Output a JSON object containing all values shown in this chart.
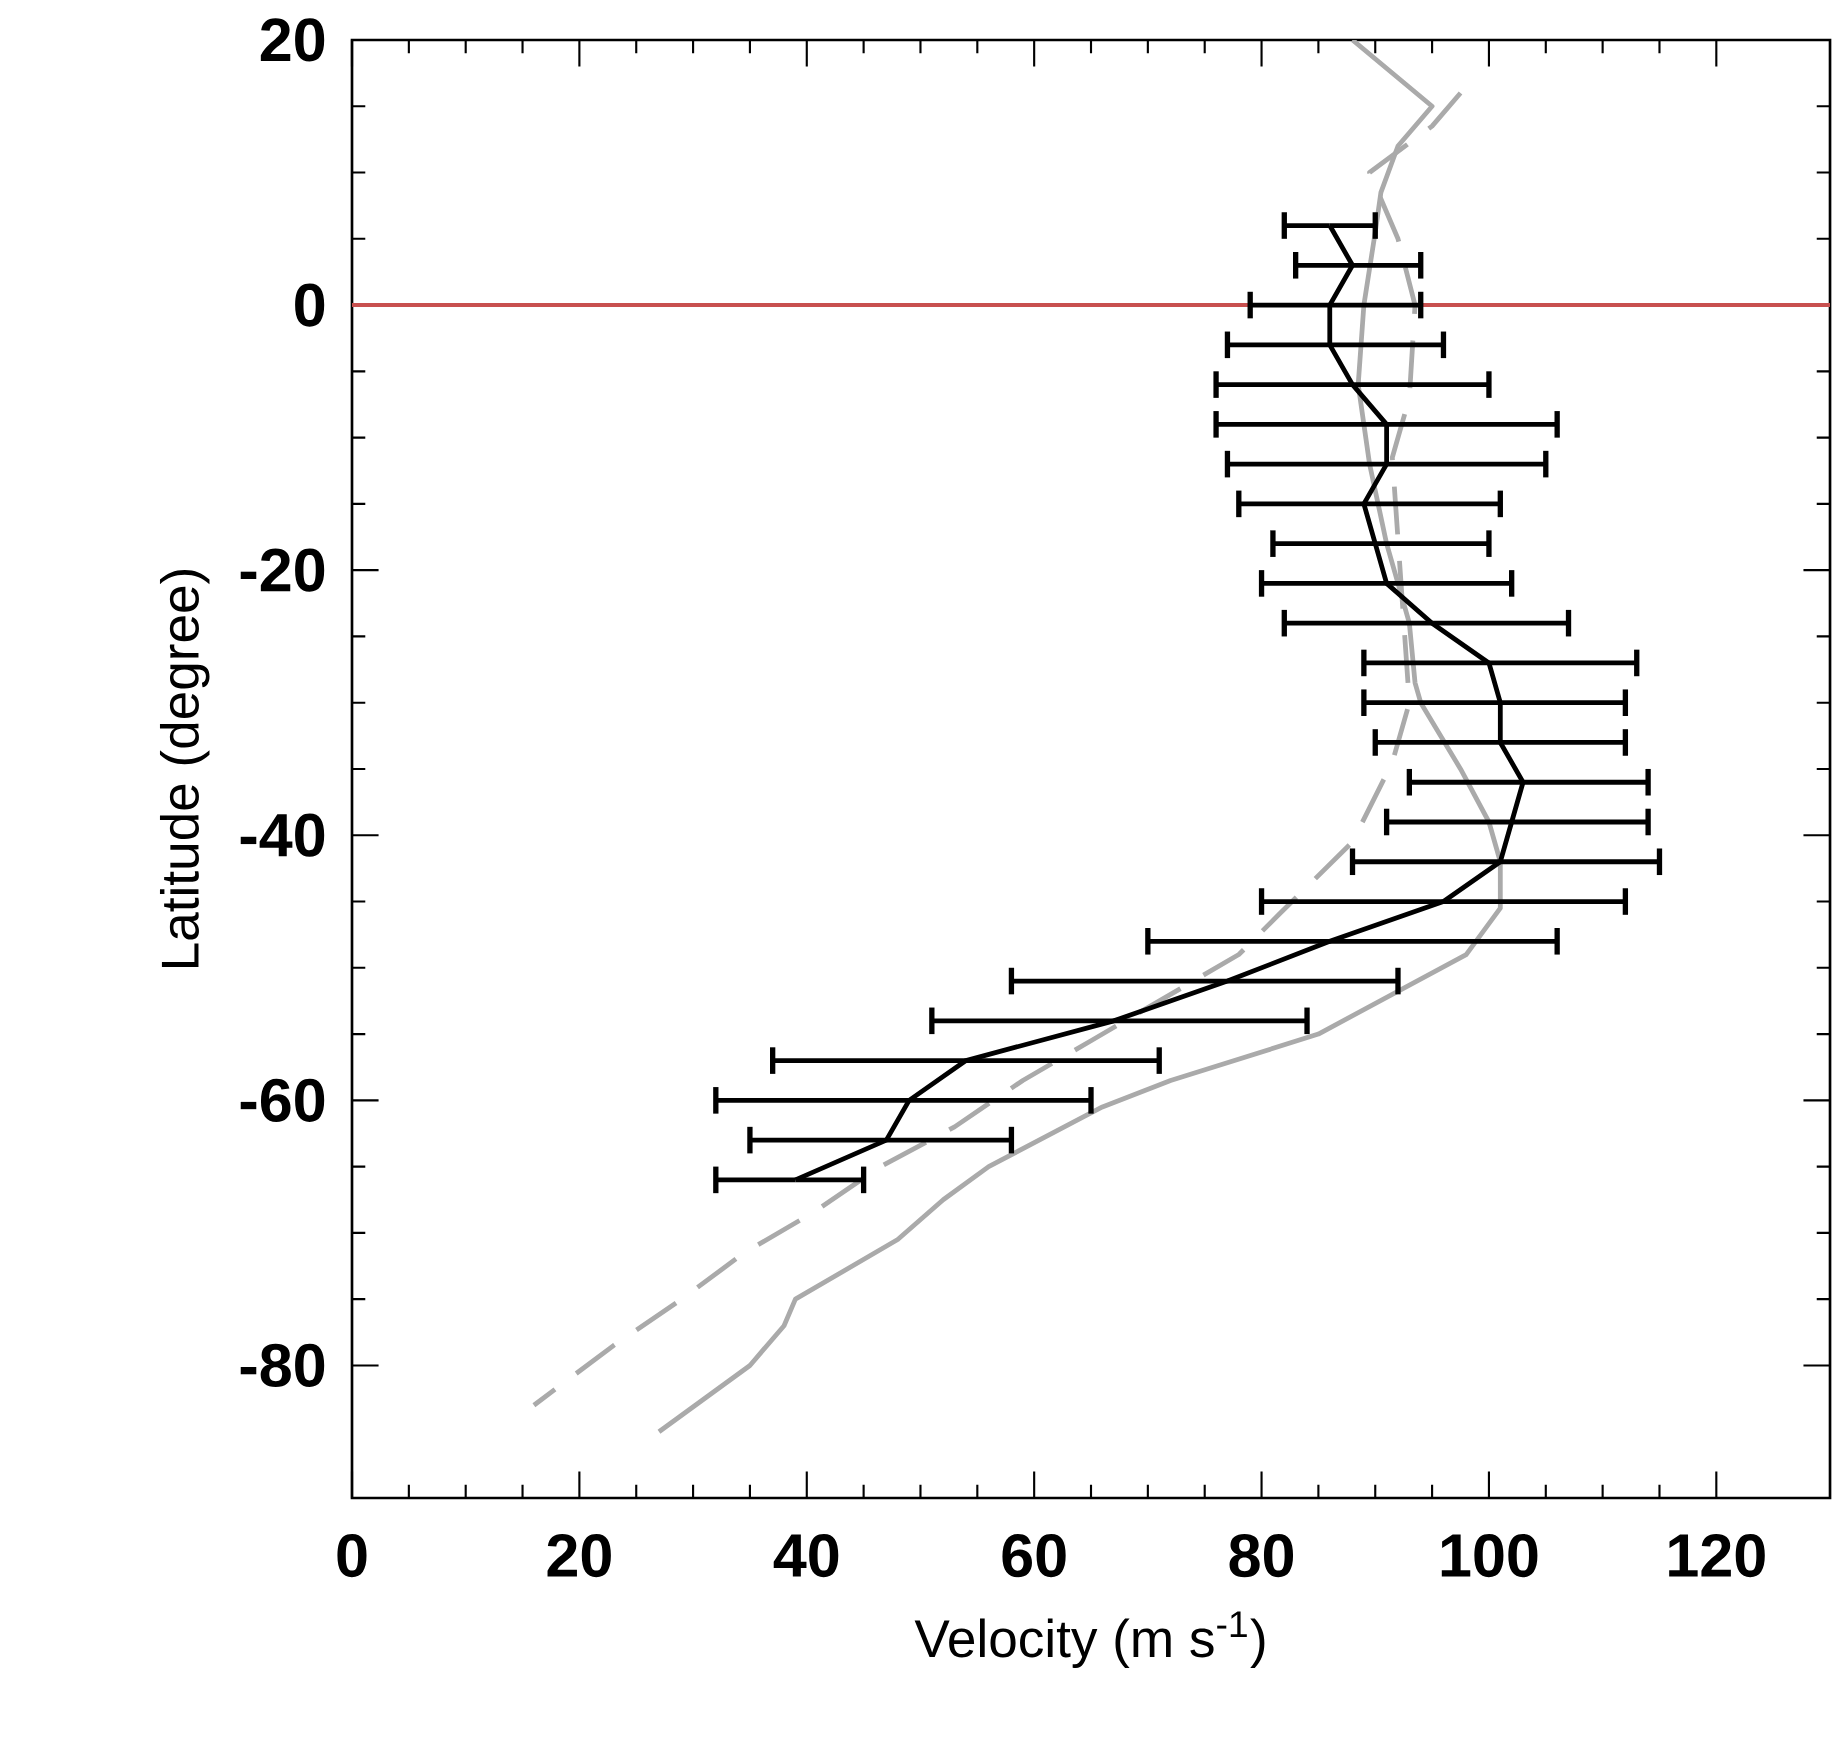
{
  "chart_data": {
    "type": "line",
    "xlabel": "Velocity (m s$^{-1}$)",
    "ylabel": "Latitude (degree)",
    "xlim": [
      0,
      130
    ],
    "ylim": [
      -90,
      20
    ],
    "xticks": [
      0,
      20,
      40,
      60,
      80,
      100,
      120
    ],
    "yticks": [
      -80,
      -60,
      -40,
      -20,
      0,
      20
    ],
    "marker": "none",
    "ref_lines": [
      {
        "axis": "y",
        "value": 0,
        "color": "#c8504f"
      }
    ],
    "series": [
      {
        "color": "#aaaaaa",
        "line_style": "solid",
        "x": [
          88,
          95,
          92,
          90.5,
          90,
          89,
          88.5,
          89.5,
          91,
          93,
          93.5,
          94,
          97.5,
          100,
          101,
          101,
          98,
          85,
          72,
          66,
          56,
          52,
          48,
          39,
          38,
          35,
          27
        ],
        "values": [
          20,
          15,
          12,
          8.5,
          5.5,
          0,
          -6,
          -12,
          -18,
          -24,
          -28.5,
          -30,
          -35,
          -39,
          -42,
          -45.5,
          -49,
          -55,
          -58.5,
          -60.5,
          -65,
          -67.5,
          -70.5,
          -75,
          -77,
          -80,
          -85
        ]
      },
      {
        "color": "#aaaaaa",
        "line_style": "dashed",
        "x": [
          97.5,
          95,
          89.5,
          92,
          93.5,
          93,
          91.5,
          93,
          91.5,
          88,
          81.5,
          78,
          65,
          59,
          53,
          46.5,
          40.5,
          34.5,
          29,
          23,
          16
        ],
        "values": [
          16,
          13.5,
          10,
          5,
          0,
          -7,
          -11.5,
          -30,
          -34.5,
          -40.5,
          -46,
          -49,
          -55.5,
          -58.5,
          -62,
          -65,
          -68.5,
          -71.5,
          -75,
          -78.5,
          -83
        ]
      },
      {
        "color": "#000000",
        "line_style": "solid",
        "x": [
          86,
          88,
          86,
          86,
          88,
          91,
          91,
          89,
          90,
          91,
          95,
          100,
          101,
          101,
          103,
          102,
          101,
          96,
          86,
          77,
          67,
          54,
          49,
          47,
          39
        ],
        "values": [
          6,
          3,
          0,
          -3,
          -6,
          -9,
          -12,
          -15,
          -18,
          -21,
          -24,
          -27,
          -30,
          -33,
          -36,
          -39,
          -42,
          -45,
          -48,
          -51,
          -54,
          -57,
          -60,
          -63,
          -66
        ],
        "xerrors": [
          [
            82,
            90
          ],
          [
            83,
            94
          ],
          [
            79,
            94
          ],
          [
            77,
            96
          ],
          [
            76,
            100
          ],
          [
            76,
            106
          ],
          [
            77,
            105
          ],
          [
            78,
            101
          ],
          [
            81,
            100
          ],
          [
            80,
            102
          ],
          [
            82,
            107
          ],
          [
            89,
            113
          ],
          [
            89,
            112
          ],
          [
            90,
            112
          ],
          [
            93,
            114
          ],
          [
            91,
            114
          ],
          [
            88,
            115
          ],
          [
            80,
            112
          ],
          [
            70,
            106
          ],
          [
            58,
            92
          ],
          [
            51,
            84
          ],
          [
            37,
            71
          ],
          [
            32,
            65
          ],
          [
            35,
            58
          ],
          [
            32,
            45
          ]
        ]
      }
    ]
  }
}
